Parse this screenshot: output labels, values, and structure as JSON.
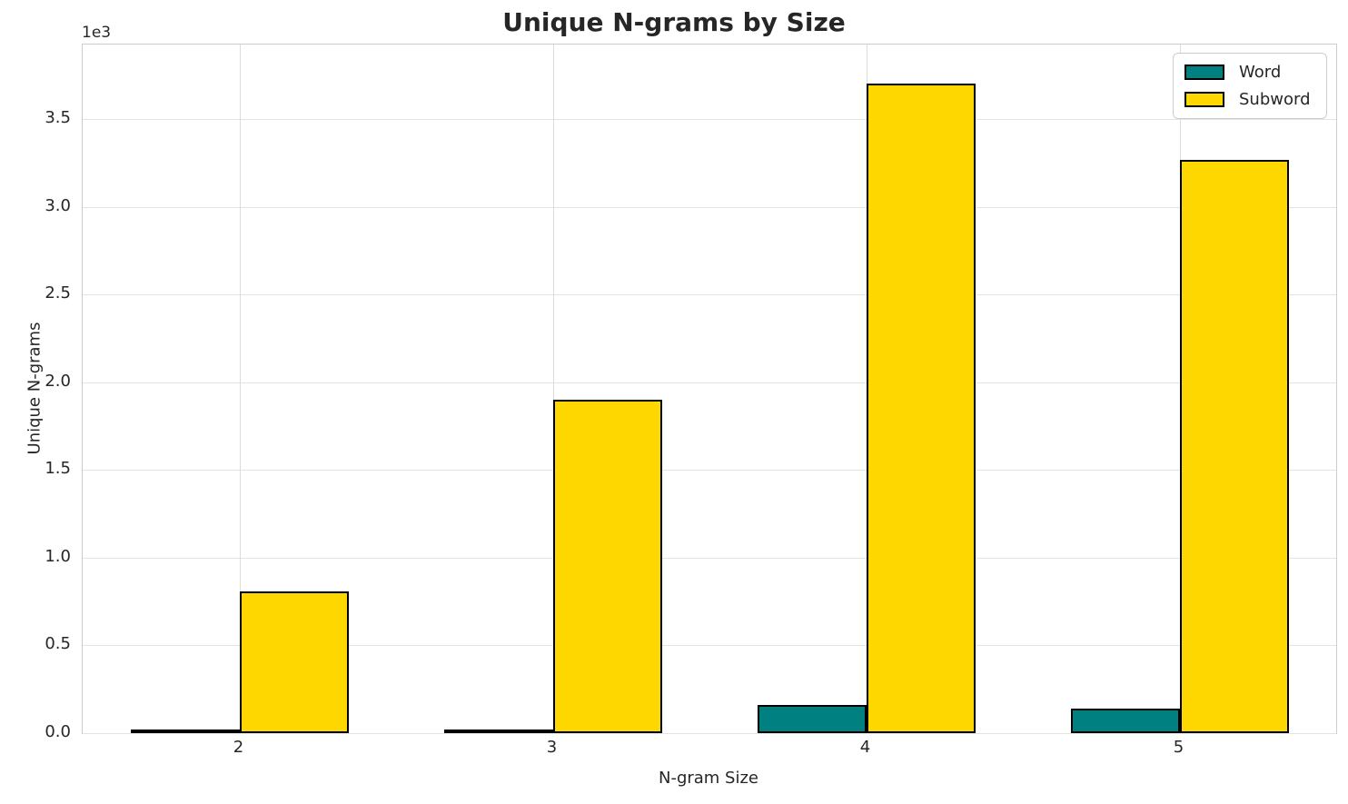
{
  "chart_data": {
    "type": "bar",
    "title": "Unique N-grams by Size",
    "xlabel": "N-gram Size",
    "ylabel": "Unique N-grams",
    "y_offset_label": "1e3",
    "categories": [
      "2",
      "3",
      "4",
      "5"
    ],
    "series": [
      {
        "name": "Word",
        "color": "#008080",
        "values": [
          15,
          18,
          160,
          140
        ]
      },
      {
        "name": "Subword",
        "color": "#FFD700",
        "values": [
          810,
          1900,
          3700,
          3270
        ]
      }
    ],
    "bar_edge_color": "#000000",
    "ylim": [
      0,
      3925
    ],
    "yticks": {
      "values": [
        0,
        500,
        1000,
        1500,
        2000,
        2500,
        3000,
        3500
      ],
      "labels": [
        "0.0",
        "0.5",
        "1.0",
        "1.5",
        "2.0",
        "2.5",
        "3.0",
        "3.5"
      ]
    },
    "grid": true,
    "legend_position": "upper right",
    "colors": {
      "grid": "#e3e3e3",
      "spine": "#cccccc",
      "text": "#262626",
      "background": "#ffffff"
    }
  }
}
